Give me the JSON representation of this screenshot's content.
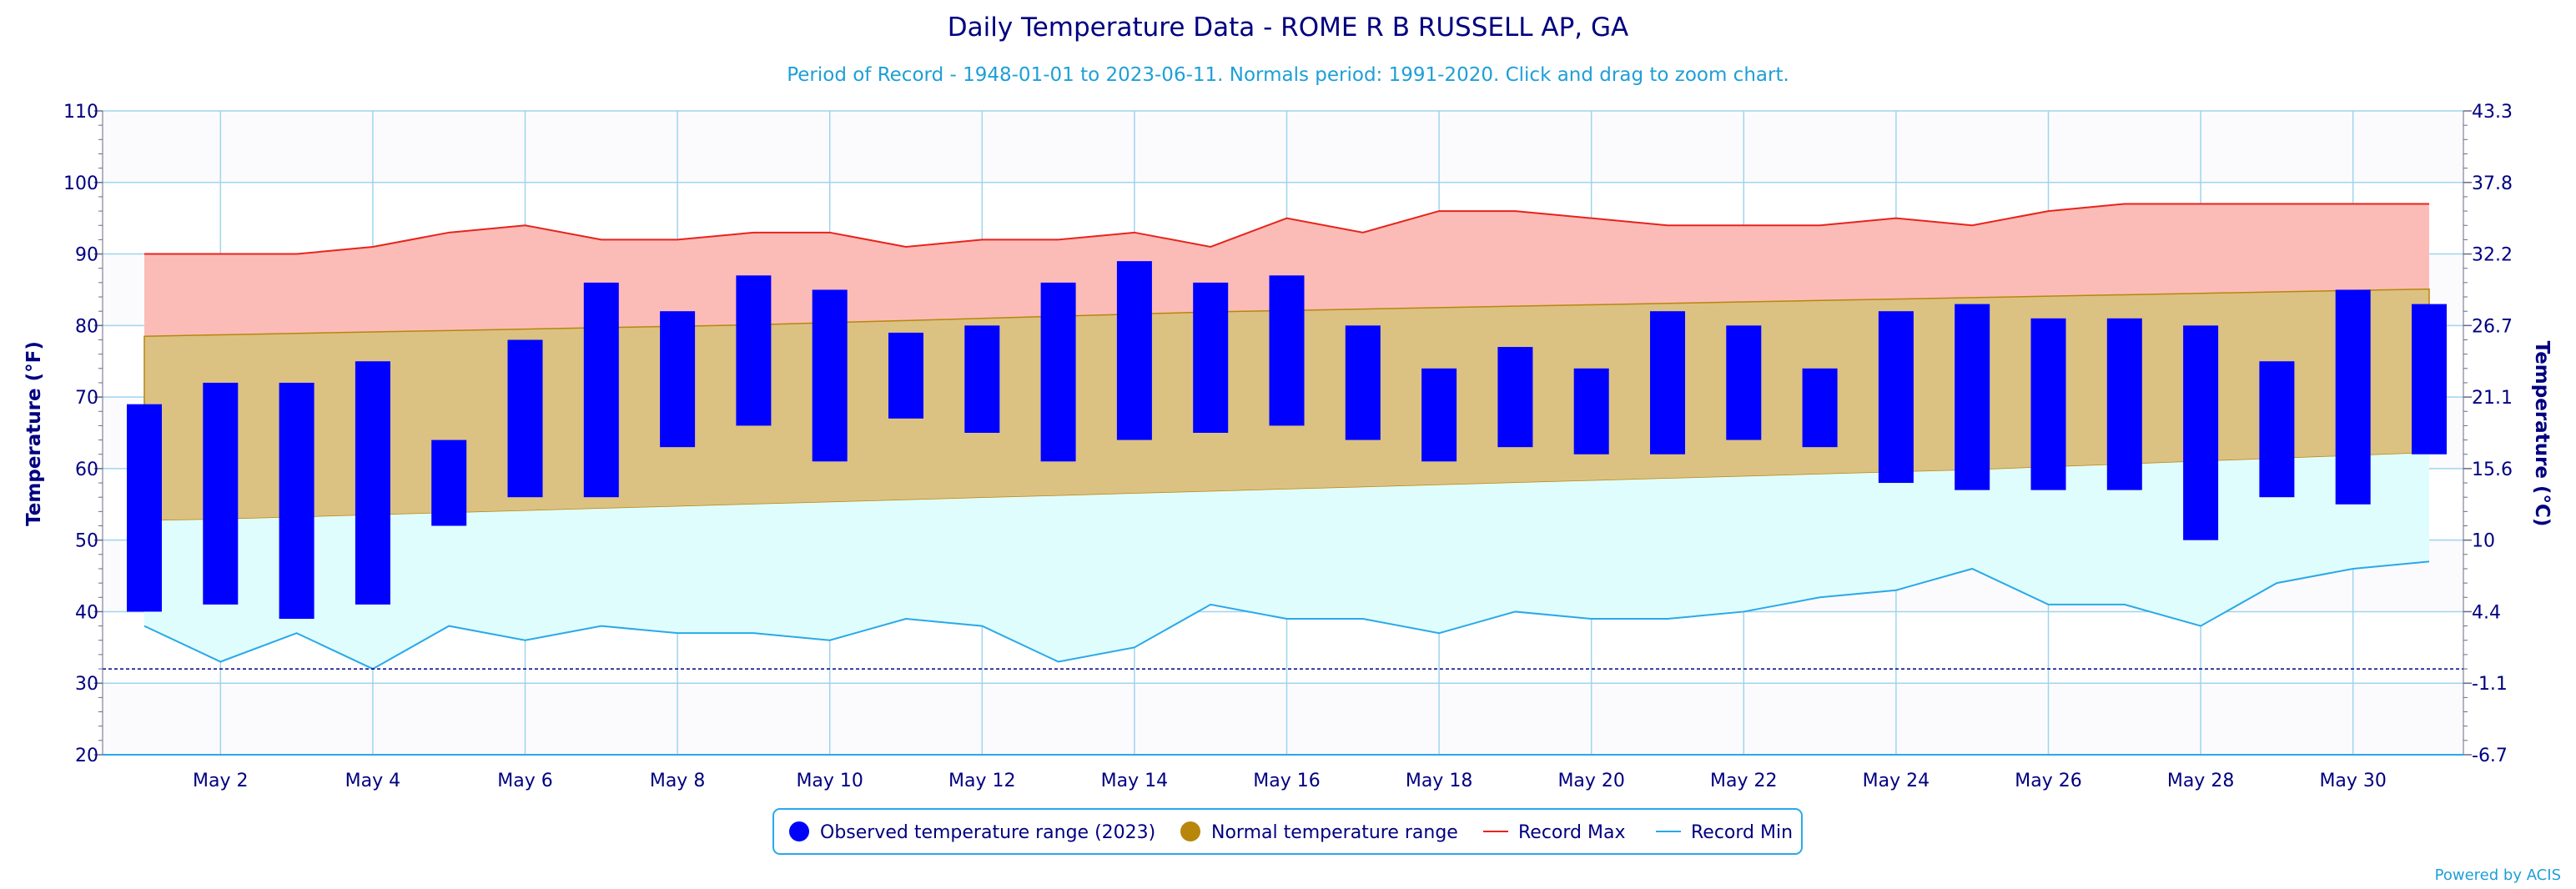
{
  "chart_data": {
    "type": "bar",
    "title": "Daily Temperature Data - ROME R B RUSSELL AP, GA",
    "subtitle": "Period of Record - 1948-01-01 to 2023-06-11. Normals period: 1991-2020. Click and drag to zoom chart.",
    "ylabel": "Temperature (°F)",
    "ylabel_right": "Temperature (°C)",
    "ylim": [
      20,
      110
    ],
    "y_ticks": [
      20,
      30,
      40,
      50,
      60,
      70,
      80,
      90,
      100,
      110
    ],
    "y_ticks_right": [
      "-6.7",
      "-1.1",
      "4.4",
      "10",
      "15.6",
      "21.1",
      "26.7",
      "32.2",
      "37.8",
      "43.3"
    ],
    "x_tick_labels": [
      "May 2",
      "May 4",
      "May 6",
      "May 8",
      "May 10",
      "May 12",
      "May 14",
      "May 16",
      "May 18",
      "May 20",
      "May 22",
      "May 24",
      "May 26",
      "May 28",
      "May 30"
    ],
    "days": [
      1,
      2,
      3,
      4,
      5,
      6,
      7,
      8,
      9,
      10,
      11,
      12,
      13,
      14,
      15,
      16,
      17,
      18,
      19,
      20,
      21,
      22,
      23,
      24,
      25,
      26,
      27,
      28,
      29,
      30,
      31
    ],
    "freezing_line": 32,
    "grid": true,
    "legend_position": "bottom-center",
    "series": [
      {
        "name": "Observed temperature range (2023)",
        "color": "#0000ff",
        "low": [
          40,
          41,
          39,
          41,
          52,
          56,
          56,
          63,
          66,
          61,
          67,
          65,
          61,
          64,
          65,
          66,
          64,
          61,
          63,
          62,
          62,
          64,
          63,
          58,
          57,
          57,
          57,
          50,
          56,
          55,
          62
        ],
        "high": [
          69,
          72,
          72,
          75,
          64,
          78,
          86,
          82,
          87,
          85,
          79,
          80,
          86,
          89,
          86,
          87,
          80,
          74,
          77,
          74,
          82,
          80,
          74,
          82,
          83,
          81,
          81,
          80,
          75,
          85,
          83
        ]
      },
      {
        "name": "Normal temperature range",
        "color": "#b8860b",
        "low": [
          52.7,
          52.9,
          53.2,
          53.5,
          53.8,
          54.1,
          54.4,
          54.7,
          55.0,
          55.3,
          55.6,
          55.9,
          56.2,
          56.5,
          56.8,
          57.1,
          57.4,
          57.7,
          58.0,
          58.3,
          58.6,
          58.9,
          59.2,
          59.5,
          59.8,
          60.2,
          60.6,
          61.0,
          61.4,
          61.8,
          62.2
        ],
        "high": [
          78.5,
          78.7,
          78.9,
          79.1,
          79.3,
          79.5,
          79.7,
          79.9,
          80.1,
          80.4,
          80.7,
          81.0,
          81.3,
          81.6,
          81.9,
          82.1,
          82.3,
          82.5,
          82.7,
          82.9,
          83.1,
          83.3,
          83.5,
          83.7,
          83.9,
          84.1,
          84.3,
          84.5,
          84.7,
          84.9,
          85.1
        ]
      },
      {
        "name": "Record Max",
        "color": "#e8231d",
        "values": [
          90,
          90,
          90,
          91,
          93,
          94,
          92,
          92,
          93,
          93,
          91,
          92,
          92,
          93,
          91,
          95,
          93,
          96,
          96,
          95,
          94,
          94,
          94,
          95,
          94,
          96,
          97,
          97,
          97,
          97,
          97
        ]
      },
      {
        "name": "Record Min",
        "color": "#29a9e8",
        "values": [
          38,
          33,
          37,
          32,
          38,
          36,
          38,
          37,
          37,
          36,
          39,
          38,
          33,
          35,
          41,
          39,
          39,
          37,
          40,
          39,
          39,
          40,
          42,
          43,
          46,
          41,
          41,
          38,
          44,
          46,
          47
        ]
      }
    ]
  },
  "credit": "Powered by ACIS"
}
